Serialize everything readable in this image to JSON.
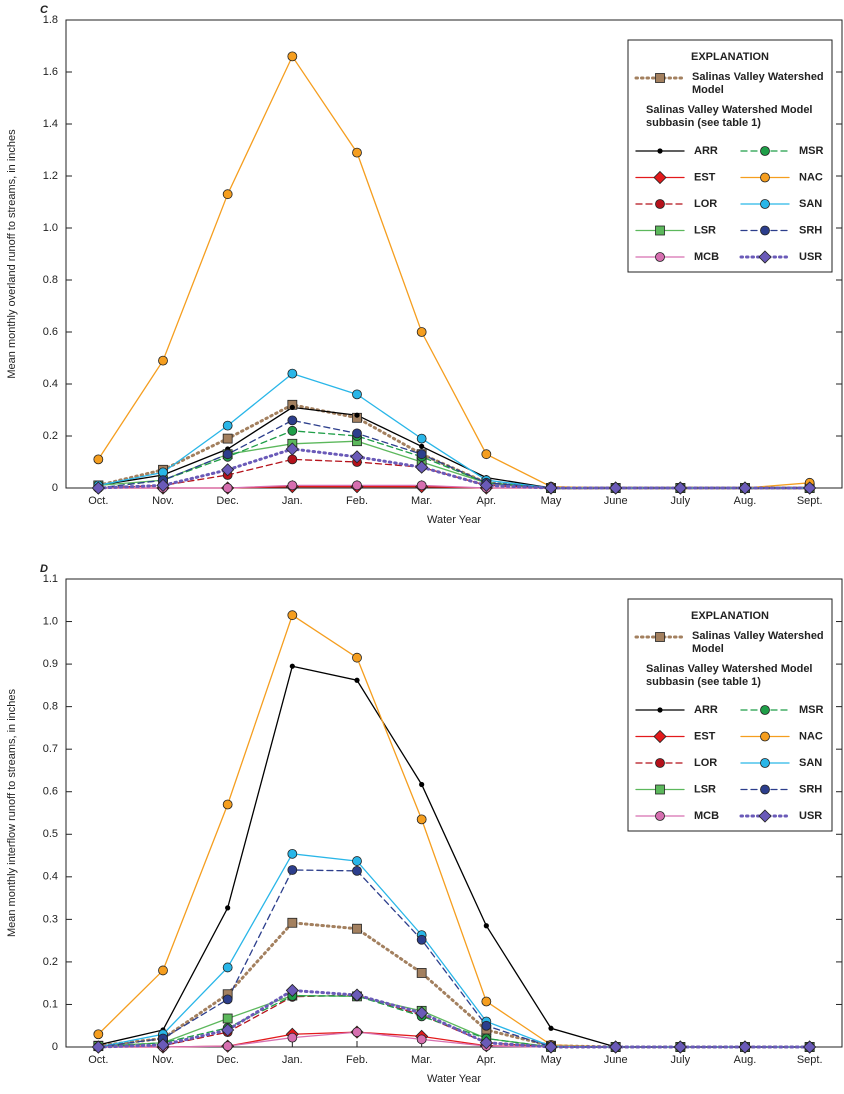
{
  "chart_data": [
    {
      "type": "line",
      "title": "C",
      "y_label": "Mean monthly overland runoff to streams, in inches",
      "x_label": "Water Year",
      "legend_title": "EXPLANATION",
      "legend_subtitle": "Salinas Valley Watershed Model subbasin (see table 1)",
      "categories": [
        "Oct.",
        "Nov.",
        "Dec.",
        "Jan.",
        "Feb.",
        "Mar.",
        "Apr.",
        "May",
        "June",
        "July",
        "Aug.",
        "Sept."
      ],
      "ylim": [
        0,
        1.8
      ],
      "yticks": [
        0,
        0.2,
        0.4,
        0.6,
        0.8,
        {
          "value": 1,
          "label": "1.0"
        },
        1.2,
        1.4,
        1.6,
        1.8
      ],
      "series": [
        {
          "name": "Salinas Valley Watershed Model",
          "color": "#a3805f",
          "marker": "square",
          "dash": "dotted",
          "values": [
            0.01,
            0.07,
            0.19,
            0.32,
            0.27,
            0.13,
            0.02,
            0,
            0,
            0,
            0,
            0
          ]
        },
        {
          "name": "ARR",
          "color": "#000000",
          "marker": "dot",
          "dash": "solid",
          "values": [
            0.01,
            0.05,
            0.15,
            0.31,
            0.28,
            0.16,
            0.04,
            0,
            0,
            0,
            0,
            0
          ]
        },
        {
          "name": "EST",
          "color": "#e31a1c",
          "marker": "diamond",
          "dash": "solid",
          "values": [
            0,
            0,
            0,
            0.005,
            0.005,
            0.005,
            0,
            0,
            0,
            0,
            0,
            0
          ]
        },
        {
          "name": "LOR",
          "color": "#b5121b",
          "marker": "circle",
          "dash": "dashed",
          "values": [
            0,
            0.01,
            0.05,
            0.11,
            0.1,
            0.08,
            0.01,
            0,
            0,
            0,
            0,
            0
          ]
        },
        {
          "name": "LSR",
          "color": "#5cb85c",
          "marker": "square",
          "dash": "solid",
          "values": [
            0.01,
            0.03,
            0.13,
            0.17,
            0.18,
            0.1,
            0.02,
            0,
            0,
            0,
            0,
            0
          ]
        },
        {
          "name": "MCB",
          "color": "#d66fb0",
          "marker": "circle",
          "dash": "solid",
          "values": [
            0,
            0,
            0,
            0.01,
            0.01,
            0.01,
            0,
            0,
            0,
            0,
            0,
            0
          ]
        },
        {
          "name": "MSR",
          "color": "#1f9e48",
          "marker": "circle",
          "dash": "dashed",
          "values": [
            0,
            0.03,
            0.12,
            0.22,
            0.2,
            0.12,
            0.02,
            0,
            0,
            0,
            0,
            0
          ]
        },
        {
          "name": "NAC",
          "color": "#f59e1f",
          "marker": "circle",
          "dash": "solid",
          "values": [
            0.11,
            0.49,
            1.13,
            1.66,
            1.29,
            0.6,
            0.13,
            0.005,
            0,
            0,
            0,
            0.02
          ]
        },
        {
          "name": "SAN",
          "color": "#29b6e8",
          "marker": "circle",
          "dash": "solid",
          "values": [
            0.01,
            0.06,
            0.24,
            0.44,
            0.36,
            0.19,
            0.03,
            0,
            0,
            0,
            0,
            0
          ]
        },
        {
          "name": "SRH",
          "color": "#2c3e8c",
          "marker": "circle",
          "dash": "dashed",
          "values": [
            0,
            0.03,
            0.13,
            0.26,
            0.21,
            0.13,
            0.02,
            0,
            0,
            0,
            0,
            0
          ]
        },
        {
          "name": "USR",
          "color": "#6a5ab8",
          "marker": "diamond",
          "dash": "dotted",
          "values": [
            0,
            0.01,
            0.07,
            0.15,
            0.12,
            0.08,
            0.01,
            0,
            0,
            0,
            0,
            0
          ]
        }
      ]
    },
    {
      "type": "line",
      "title": "D",
      "y_label": "Mean monthly interflow runoff to streams, in inches",
      "x_label": "Water Year",
      "legend_title": "EXPLANATION",
      "legend_subtitle": "Salinas Valley Watershed Model subbasin (see table 1)",
      "categories": [
        "Oct.",
        "Nov.",
        "Dec.",
        "Jan.",
        "Feb.",
        "Mar.",
        "Apr.",
        "May",
        "June",
        "July",
        "Aug.",
        "Sept."
      ],
      "ylim": [
        0,
        1.1
      ],
      "yticks": [
        0,
        0.1,
        0.2,
        0.3,
        0.4,
        0.5,
        0.6,
        0.7,
        0.8,
        0.9,
        {
          "value": 1,
          "label": "1.0"
        },
        1.1
      ],
      "series": [
        {
          "name": "Salinas Valley Watershed Model",
          "color": "#a3805f",
          "marker": "square",
          "dash": "dotted",
          "values": [
            0.003,
            0.02,
            0.124,
            0.292,
            0.278,
            0.174,
            0.04,
            0.003,
            0,
            0,
            0,
            0
          ]
        },
        {
          "name": "ARR",
          "color": "#000000",
          "marker": "dot",
          "dash": "solid",
          "values": [
            0.005,
            0.04,
            0.327,
            0.895,
            0.862,
            0.617,
            0.285,
            0.044,
            0,
            0,
            0,
            0
          ]
        },
        {
          "name": "EST",
          "color": "#e31a1c",
          "marker": "diamond",
          "dash": "solid",
          "values": [
            0,
            0,
            0.002,
            0.03,
            0.035,
            0.025,
            0.003,
            0,
            0,
            0,
            0,
            0
          ]
        },
        {
          "name": "LOR",
          "color": "#b5121b",
          "marker": "circle",
          "dash": "dashed",
          "values": [
            0,
            0.003,
            0.035,
            0.118,
            0.122,
            0.075,
            0.01,
            0,
            0,
            0,
            0,
            0
          ]
        },
        {
          "name": "LSR",
          "color": "#5cb85c",
          "marker": "square",
          "dash": "solid",
          "values": [
            0.002,
            0.01,
            0.067,
            0.121,
            0.119,
            0.085,
            0.02,
            0,
            0,
            0,
            0,
            0
          ]
        },
        {
          "name": "MCB",
          "color": "#d66fb0",
          "marker": "circle",
          "dash": "solid",
          "values": [
            0,
            0,
            0.002,
            0.022,
            0.035,
            0.018,
            0.002,
            0,
            0,
            0,
            0,
            0
          ]
        },
        {
          "name": "MSR",
          "color": "#1f9e48",
          "marker": "circle",
          "dash": "dashed",
          "values": [
            0,
            0.01,
            0.045,
            0.12,
            0.12,
            0.072,
            0.02,
            0,
            0,
            0,
            0,
            0
          ]
        },
        {
          "name": "NAC",
          "color": "#f59e1f",
          "marker": "circle",
          "dash": "solid",
          "values": [
            0.03,
            0.18,
            0.57,
            1.015,
            0.915,
            0.535,
            0.107,
            0.005,
            0,
            0,
            0,
            0
          ]
        },
        {
          "name": "SAN",
          "color": "#29b6e8",
          "marker": "circle",
          "dash": "solid",
          "values": [
            0,
            0.03,
            0.187,
            0.454,
            0.437,
            0.263,
            0.06,
            0.002,
            0,
            0,
            0,
            0
          ]
        },
        {
          "name": "SRH",
          "color": "#2c3e8c",
          "marker": "circle",
          "dash": "dashed",
          "values": [
            0,
            0.02,
            0.112,
            0.416,
            0.414,
            0.252,
            0.05,
            0,
            0,
            0,
            0,
            0
          ]
        },
        {
          "name": "USR",
          "color": "#6a5ab8",
          "marker": "diamond",
          "dash": "dotted",
          "values": [
            0,
            0.005,
            0.04,
            0.133,
            0.122,
            0.08,
            0.01,
            0,
            0,
            0,
            0,
            0
          ]
        }
      ]
    }
  ]
}
